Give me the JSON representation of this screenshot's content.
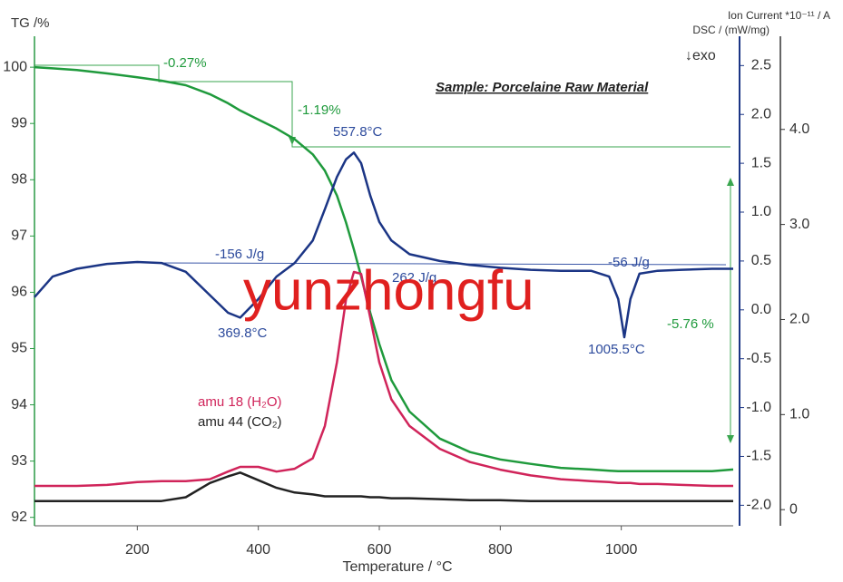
{
  "chart_data": {
    "type": "line",
    "x_label": "Temperature / °C",
    "y_label": "TG /%",
    "y2_label": "DSC / (mW/mg)",
    "y3_label": "Ion Current *10⁻¹¹ / A",
    "x": [
      30,
      60,
      100,
      150,
      200,
      240,
      280,
      320,
      350,
      370,
      400,
      430,
      460,
      490,
      510,
      530,
      545,
      558,
      570,
      585,
      600,
      620,
      650,
      700,
      750,
      800,
      850,
      900,
      950,
      980,
      995,
      1005,
      1015,
      1030,
      1060,
      1100,
      1150,
      1185
    ],
    "xlim": [
      30,
      1185
    ],
    "xticks": [
      200,
      400,
      600,
      800,
      1000
    ],
    "ylim": [
      91.85,
      100.55
    ],
    "yticks": [
      92,
      93,
      94,
      95,
      96,
      97,
      98,
      99,
      100
    ],
    "y2lim": [
      -2.21,
      2.8
    ],
    "y2ticks": [
      {
        "value": -2.0,
        "label": "-2.0"
      },
      -1.5,
      {
        "value": -1.0,
        "label": "-1.0"
      },
      -0.5,
      {
        "value": 0,
        "label": "0.0"
      },
      0.5,
      {
        "value": 1.0,
        "label": "1.0"
      },
      1.5,
      {
        "value": 2.0,
        "label": "2.0"
      },
      2.5
    ],
    "y3lim": [
      -0.17,
      4.98
    ],
    "y3ticks": [
      0,
      {
        "value": 1,
        "label": "1.0"
      },
      {
        "value": 2,
        "label": "2.0"
      },
      {
        "value": 3,
        "label": "3.0"
      },
      {
        "value": 4,
        "label": "4.0"
      }
    ],
    "series": [
      {
        "color": "#1f9a3c",
        "axis": "y",
        "values": [
          100.0,
          99.98,
          99.95,
          99.89,
          99.82,
          99.76,
          99.68,
          99.52,
          99.36,
          99.23,
          99.07,
          98.91,
          98.72,
          98.45,
          98.16,
          97.72,
          97.24,
          96.76,
          96.28,
          95.64,
          95.08,
          94.44,
          93.88,
          93.4,
          93.16,
          93.03,
          92.95,
          92.88,
          92.85,
          92.83,
          92.82,
          92.82,
          92.82,
          92.82,
          92.82,
          92.82,
          92.82,
          92.85
        ]
      },
      {
        "color": "#1b3585",
        "axis": "y2",
        "values": [
          0.13,
          0.34,
          0.42,
          0.47,
          0.49,
          0.48,
          0.39,
          0.15,
          -0.03,
          -0.08,
          0.11,
          0.34,
          0.48,
          0.71,
          1.03,
          1.36,
          1.54,
          1.61,
          1.5,
          1.17,
          0.9,
          0.71,
          0.57,
          0.5,
          0.46,
          0.43,
          0.41,
          0.4,
          0.4,
          0.34,
          0.11,
          -0.28,
          0.11,
          0.37,
          0.4,
          0.41,
          0.42,
          0.42
        ]
      },
      {
        "name": "amu 18 (H₂O)",
        "color": "#d0245a",
        "axis": "y3",
        "values": [
          0.25,
          0.25,
          0.25,
          0.26,
          0.29,
          0.3,
          0.3,
          0.32,
          0.4,
          0.45,
          0.45,
          0.4,
          0.43,
          0.54,
          0.88,
          1.55,
          2.21,
          2.5,
          2.48,
          2.02,
          1.55,
          1.16,
          0.88,
          0.64,
          0.5,
          0.42,
          0.36,
          0.32,
          0.3,
          0.29,
          0.28,
          0.28,
          0.28,
          0.27,
          0.27,
          0.26,
          0.25,
          0.25
        ]
      },
      {
        "name": "amu 44 (CO₂)",
        "color": "#222222",
        "axis": "y3",
        "values": [
          0.09,
          0.09,
          0.09,
          0.09,
          0.09,
          0.09,
          0.13,
          0.28,
          0.35,
          0.39,
          0.31,
          0.23,
          0.18,
          0.16,
          0.14,
          0.14,
          0.14,
          0.14,
          0.14,
          0.13,
          0.13,
          0.12,
          0.12,
          0.11,
          0.1,
          0.1,
          0.09,
          0.09,
          0.09,
          0.09,
          0.09,
          0.09,
          0.09,
          0.09,
          0.09,
          0.09,
          0.09,
          0.09
        ]
      }
    ],
    "exo_label": "↓exo",
    "annotations": [
      {
        "text": "Sample: Porcelaine Raw Material",
        "color": "#222222"
      },
      {
        "text": "-0.27%",
        "color": "#1f9a3c"
      },
      {
        "text": "-1.19%",
        "color": "#1f9a3c"
      },
      {
        "text": "-5.76 %",
        "color": "#1f9a3c"
      },
      {
        "text": "557.8°C",
        "color": "#2c4a9c"
      },
      {
        "text": "-156 J/g",
        "color": "#2c4a9c"
      },
      {
        "text": "262 J/g",
        "color": "#2c4a9c"
      },
      {
        "text": "-56 J/g",
        "color": "#2c4a9c"
      },
      {
        "text": "369.8°C",
        "color": "#2c4a9c"
      },
      {
        "text": "1005.5°C",
        "color": "#2c4a9c"
      }
    ],
    "watermark": {
      "text": "yunzhongfu",
      "color": "#e0201f"
    }
  }
}
